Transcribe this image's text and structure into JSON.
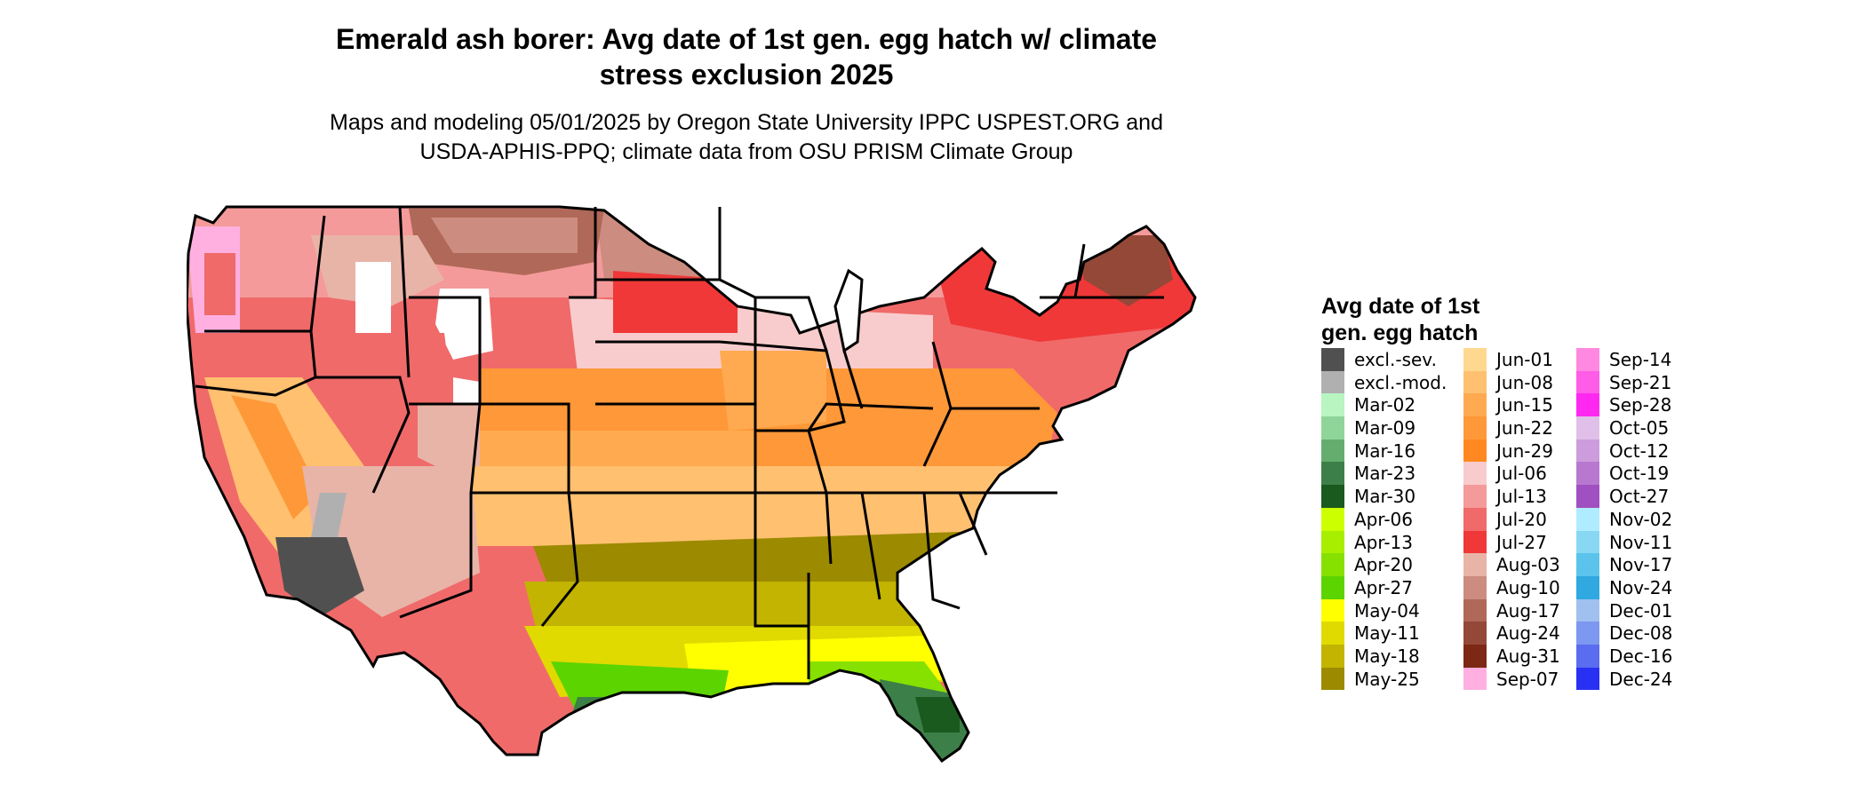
{
  "title_line1": "Emerald ash borer: Avg date of 1st gen. egg hatch w/ climate",
  "title_line2": "stress exclusion 2025",
  "subtitle_line1": "Maps and modeling 05/01/2025 by Oregon State University IPPC USPEST.ORG and",
  "subtitle_line2": "USDA-APHIS-PPQ; climate data from OSU PRISM Climate Group",
  "legend": {
    "title_line1": "Avg date of 1st",
    "title_line2": "gen. egg hatch",
    "columns": [
      [
        {
          "label": "excl.-sev.",
          "color": "#505050"
        },
        {
          "label": "excl.-mod.",
          "color": "#b0b0b0"
        },
        {
          "label": "Mar-02",
          "color": "#b8f5c0"
        },
        {
          "label": "Mar-09",
          "color": "#8fd59a"
        },
        {
          "label": "Mar-16",
          "color": "#64ad6e"
        },
        {
          "label": "Mar-23",
          "color": "#3d7f48"
        },
        {
          "label": "Mar-30",
          "color": "#1a5a1e"
        },
        {
          "label": "Apr-06",
          "color": "#ccff00"
        },
        {
          "label": "Apr-13",
          "color": "#a8ee00"
        },
        {
          "label": "Apr-20",
          "color": "#86e000"
        },
        {
          "label": "Apr-27",
          "color": "#5cd400"
        },
        {
          "label": "May-04",
          "color": "#ffff00"
        },
        {
          "label": "May-11",
          "color": "#e0da00"
        },
        {
          "label": "May-18",
          "color": "#c2b400"
        },
        {
          "label": "May-25",
          "color": "#9c8a00"
        }
      ],
      [
        {
          "label": "Jun-01",
          "color": "#ffd890"
        },
        {
          "label": "Jun-08",
          "color": "#ffc070"
        },
        {
          "label": "Jun-15",
          "color": "#ffaa50"
        },
        {
          "label": "Jun-22",
          "color": "#ff9838"
        },
        {
          "label": "Jun-29",
          "color": "#ff8820"
        },
        {
          "label": "Jul-06",
          "color": "#f8cccc"
        },
        {
          "label": "Jul-13",
          "color": "#f49a9a"
        },
        {
          "label": "Jul-20",
          "color": "#f06a6a"
        },
        {
          "label": "Jul-27",
          "color": "#f03838"
        },
        {
          "label": "Aug-03",
          "color": "#e8b4a8"
        },
        {
          "label": "Aug-10",
          "color": "#cc8c80"
        },
        {
          "label": "Aug-17",
          "color": "#b06858"
        },
        {
          "label": "Aug-24",
          "color": "#944838"
        },
        {
          "label": "Aug-31",
          "color": "#7c2814"
        },
        {
          "label": "Sep-07",
          "color": "#ffb0e0"
        }
      ],
      [
        {
          "label": "Sep-14",
          "color": "#ff88e0"
        },
        {
          "label": "Sep-21",
          "color": "#ff5ce8"
        },
        {
          "label": "Sep-28",
          "color": "#ff28f0"
        },
        {
          "label": "Oct-05",
          "color": "#e0c0e8"
        },
        {
          "label": "Oct-12",
          "color": "#cc9cdc"
        },
        {
          "label": "Oct-19",
          "color": "#b878d0"
        },
        {
          "label": "Oct-27",
          "color": "#a050c0"
        },
        {
          "label": "Nov-02",
          "color": "#b0ecff"
        },
        {
          "label": "Nov-11",
          "color": "#88d8f4"
        },
        {
          "label": "Nov-17",
          "color": "#5cc4ec"
        },
        {
          "label": "Nov-24",
          "color": "#30a8e0"
        },
        {
          "label": "Dec-01",
          "color": "#a0c0f0"
        },
        {
          "label": "Dec-08",
          "color": "#7c98f0"
        },
        {
          "label": "Dec-16",
          "color": "#5a6cf0"
        },
        {
          "label": "Dec-24",
          "color": "#2830f4"
        }
      ]
    ]
  }
}
